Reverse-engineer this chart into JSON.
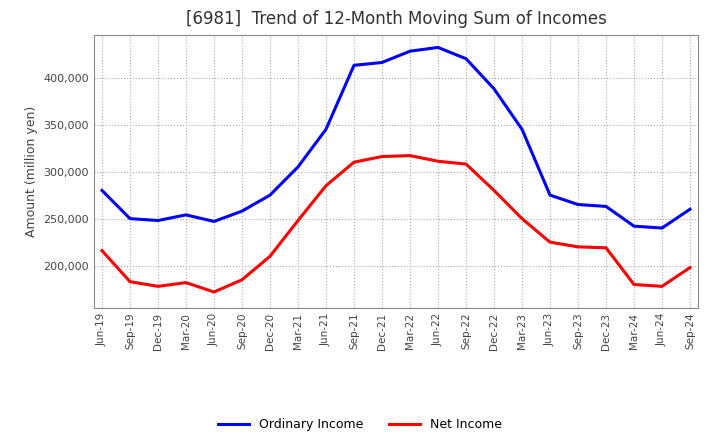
{
  "title": "[6981]  Trend of 12-Month Moving Sum of Incomes",
  "ylabel": "Amount (million yen)",
  "x_labels": [
    "Jun-19",
    "Sep-19",
    "Dec-19",
    "Mar-20",
    "Jun-20",
    "Sep-20",
    "Dec-20",
    "Mar-21",
    "Jun-21",
    "Sep-21",
    "Dec-21",
    "Mar-22",
    "Jun-22",
    "Sep-22",
    "Dec-22",
    "Mar-23",
    "Jun-23",
    "Sep-23",
    "Dec-23",
    "Mar-24",
    "Jun-24",
    "Sep-24"
  ],
  "ordinary_income": [
    280000,
    250000,
    248000,
    254000,
    247000,
    258000,
    275000,
    305000,
    345000,
    413000,
    416000,
    428000,
    432000,
    420000,
    388000,
    345000,
    275000,
    265000,
    263000,
    242000,
    240000,
    260000
  ],
  "net_income": [
    216000,
    183000,
    178000,
    182000,
    172000,
    185000,
    210000,
    248000,
    285000,
    310000,
    316000,
    317000,
    311000,
    308000,
    280000,
    250000,
    225000,
    220000,
    219000,
    180000,
    178000,
    198000
  ],
  "ordinary_color": "#0000ff",
  "net_color": "#ff0000",
  "ylim_min": 155000,
  "ylim_max": 445000,
  "yticks": [
    200000,
    250000,
    300000,
    350000,
    400000
  ],
  "grid_color": "#aaaaaa",
  "background_color": "#ffffff",
  "title_fontsize": 12,
  "legend_labels": [
    "Ordinary Income",
    "Net Income"
  ]
}
